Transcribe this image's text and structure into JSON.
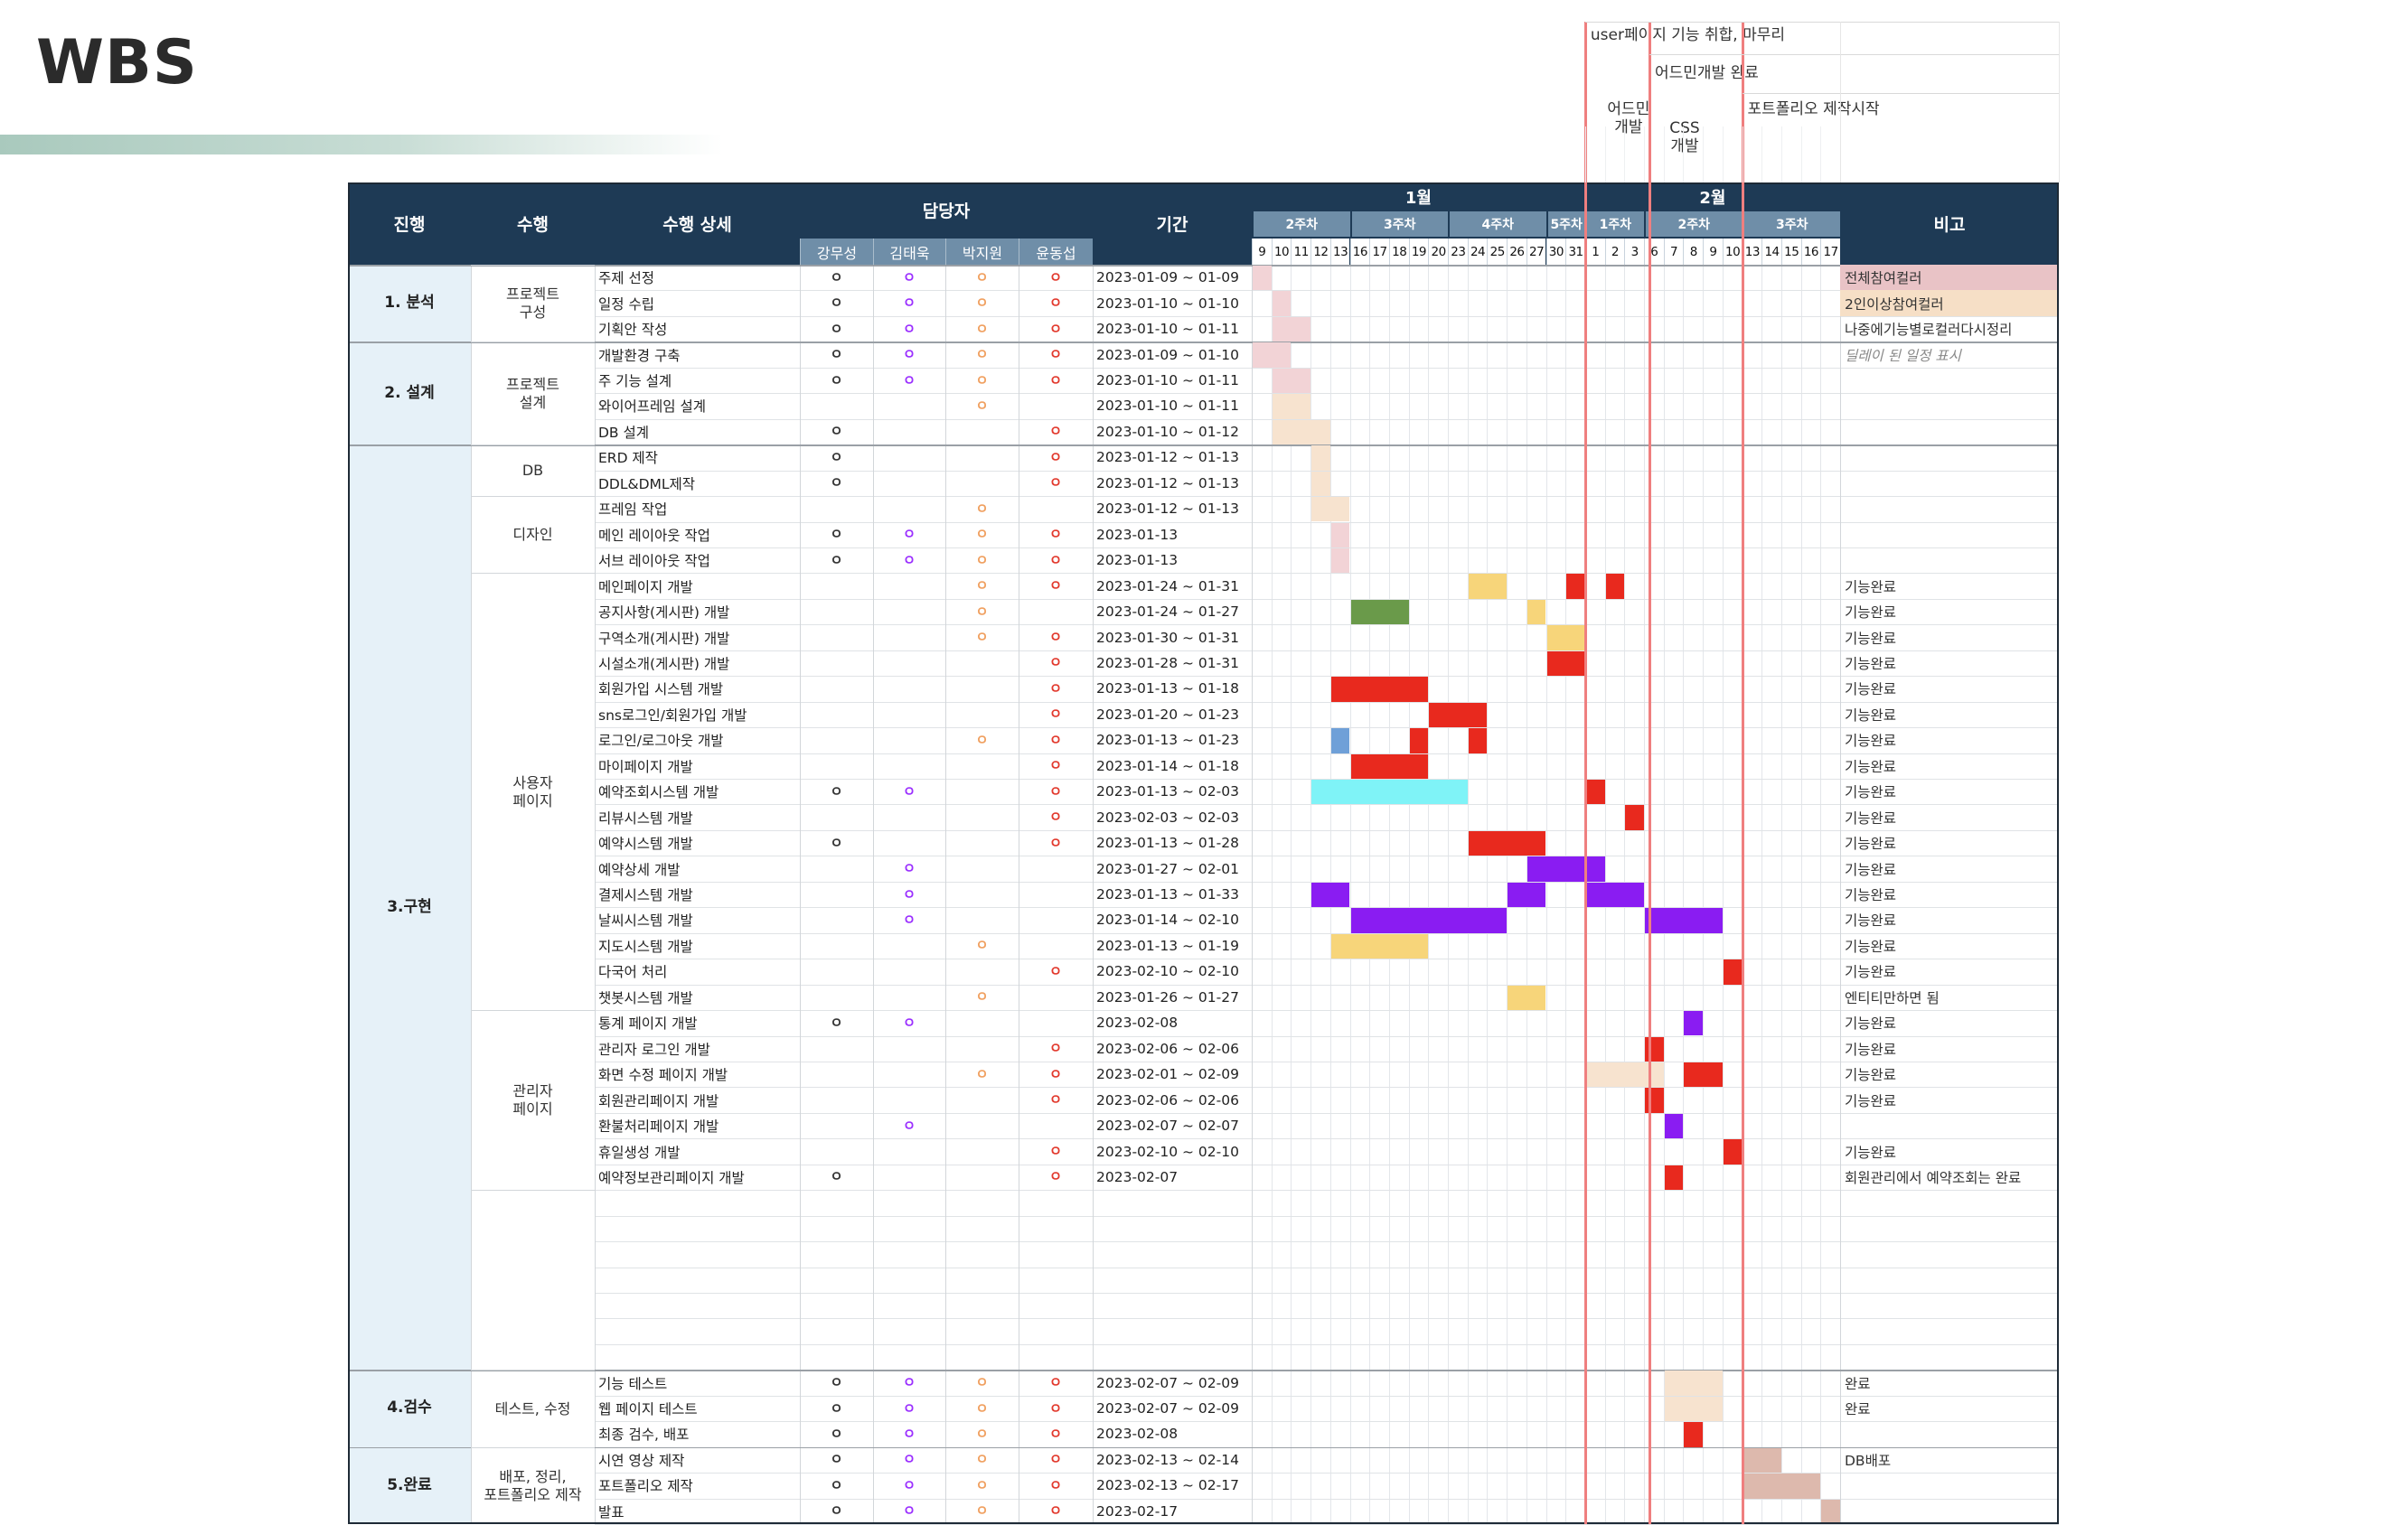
{
  "title": "WBS",
  "annotations": [
    {
      "id": "user-page",
      "text": "user페이지 기능 취합, 마무리"
    },
    {
      "id": "admin-done",
      "text": "어드민개발 완료"
    },
    {
      "id": "admin-dev",
      "text": "어드민\n개발"
    },
    {
      "id": "css-dev",
      "text": "CSS\n개발"
    },
    {
      "id": "portfolio-start",
      "text": "포트폴리오 제작시작"
    }
  ],
  "header": {
    "progress": "진행",
    "task": "수행",
    "detail": "수행 상세",
    "owner": "담당자",
    "owners": [
      "강무성",
      "김태욱",
      "박지원",
      "윤동섭"
    ],
    "period": "기간",
    "remarks": "비고"
  },
  "months": [
    "1월",
    "2월"
  ],
  "weeks": [
    "2주차",
    "3주차",
    "4주차",
    "5주차",
    "1주차",
    "2주차",
    "3주차"
  ],
  "days": [
    "9",
    "10",
    "11",
    "12",
    "13",
    "16",
    "17",
    "18",
    "19",
    "20",
    "23",
    "24",
    "25",
    "26",
    "27",
    "30",
    "31",
    "1",
    "2",
    "3",
    "6",
    "7",
    "8",
    "9",
    "10",
    "13",
    "14",
    "15",
    "16",
    "17"
  ],
  "phases": [
    {
      "label": "1. 분석",
      "row_start": 0,
      "row_count": 3
    },
    {
      "label": "2. 설계",
      "row_start": 3,
      "row_count": 4
    },
    {
      "label": "3.구현",
      "row_start": 7,
      "row_count": 36
    },
    {
      "label": "4.검수",
      "row_start": 43,
      "row_count": 3
    },
    {
      "label": "5.완료",
      "row_start": 46,
      "row_count": 3
    }
  ],
  "groups": [
    {
      "label": "프로젝트\n구성",
      "row_start": 0,
      "row_count": 3
    },
    {
      "label": "프로젝트\n설계",
      "row_start": 3,
      "row_count": 4
    },
    {
      "label": "DB",
      "row_start": 7,
      "row_count": 2
    },
    {
      "label": "디자인",
      "row_start": 9,
      "row_count": 3
    },
    {
      "label": "사용자\n페이지",
      "row_start": 12,
      "row_count": 17
    },
    {
      "label": "관리자\n페이지",
      "row_start": 29,
      "row_count": 7
    },
    {
      "label": "",
      "row_start": 36,
      "row_count": 7
    },
    {
      "label": "테스트, 수정",
      "row_start": 43,
      "row_count": 3
    },
    {
      "label": "배포, 정리,\n포트폴리오 제작",
      "row_start": 46,
      "row_count": 3
    }
  ],
  "mark_symbol": "ㅇ",
  "owner_colors": [
    "#333333",
    "#9b30ff",
    "#f0a060",
    "#e23a2e"
  ],
  "legend_colors": {
    "all": "#e9c3c6",
    "two_plus": "#f6dfc6",
    "delay": "#9aa0a6"
  },
  "rows": [
    {
      "detail": "주제 선정",
      "owners": [
        1,
        1,
        1,
        1
      ],
      "period": "2023-01-09 ~ 01-09",
      "note": "전체참여컬러",
      "note_bg": "#e9c3c6",
      "bars": [
        [
          0,
          0,
          "#f2d3d6"
        ]
      ]
    },
    {
      "detail": "일정 수립",
      "owners": [
        1,
        1,
        1,
        1
      ],
      "period": "2023-01-10 ~ 01-10",
      "note": "2인이상참여컬러",
      "note_bg": "#f6dfc6",
      "bars": [
        [
          1,
          1,
          "#f2d3d6"
        ]
      ]
    },
    {
      "detail": "기획안 작성",
      "owners": [
        1,
        1,
        1,
        1
      ],
      "period": "2023-01-10 ~ 01-11",
      "note": "나중에기능별로컬러다시정리",
      "bars": [
        [
          1,
          2,
          "#f2d3d6"
        ]
      ]
    },
    {
      "detail": "개발환경 구축",
      "owners": [
        1,
        1,
        1,
        1
      ],
      "period": "2023-01-09 ~ 01-10",
      "note": "딜레이 된 일정 표시",
      "note_style": "italic",
      "bars": [
        [
          0,
          1,
          "#f2d3d6"
        ]
      ]
    },
    {
      "detail": "주 기능 설계",
      "owners": [
        1,
        1,
        1,
        1
      ],
      "period": "2023-01-10 ~ 01-11",
      "note": "",
      "bars": [
        [
          1,
          2,
          "#f2d3d6"
        ]
      ]
    },
    {
      "detail": "와이어프레임 설계",
      "owners": [
        0,
        0,
        1,
        0
      ],
      "period": "2023-01-10 ~ 01-11",
      "note": "",
      "bars": [
        [
          1,
          2,
          "#f7e3cf"
        ]
      ]
    },
    {
      "detail": "DB 설계",
      "owners": [
        1,
        0,
        0,
        1
      ],
      "period": "2023-01-10 ~ 01-12",
      "note": "",
      "bars": [
        [
          1,
          3,
          "#f7e3cf"
        ]
      ]
    },
    {
      "detail": "ERD 제작",
      "owners": [
        1,
        0,
        0,
        1
      ],
      "period": "2023-01-12 ~ 01-13",
      "note": "",
      "bars": [
        [
          3,
          3,
          "#f7e3cf"
        ]
      ]
    },
    {
      "detail": "DDL&DML제작",
      "owners": [
        1,
        0,
        0,
        1
      ],
      "period": "2023-01-12 ~ 01-13",
      "note": "",
      "bars": [
        [
          3,
          3,
          "#f7e3cf"
        ]
      ]
    },
    {
      "detail": "프레임 작업",
      "owners": [
        0,
        0,
        1,
        0
      ],
      "period": "2023-01-12 ~ 01-13",
      "note": "",
      "bars": [
        [
          3,
          4,
          "#f7e3cf"
        ]
      ]
    },
    {
      "detail": "메인 레이아웃 작업",
      "owners": [
        1,
        1,
        1,
        1
      ],
      "period": "2023-01-13",
      "note": "",
      "bars": [
        [
          4,
          4,
          "#f2d3d6"
        ]
      ]
    },
    {
      "detail": "서브 레이아웃 작업",
      "owners": [
        1,
        1,
        1,
        1
      ],
      "period": "2023-01-13",
      "note": "",
      "bars": [
        [
          4,
          4,
          "#f2d3d6"
        ]
      ]
    },
    {
      "detail": "메인페이지 개발",
      "owners": [
        0,
        0,
        1,
        1
      ],
      "period": "2023-01-24 ~ 01-31",
      "note": "기능완료",
      "bars": [
        [
          11,
          12,
          "#f7d57a"
        ],
        [
          16,
          16,
          "#e8291e"
        ],
        [
          18,
          18,
          "#e8291e"
        ]
      ]
    },
    {
      "detail": "공지사항(게시판) 개발",
      "owners": [
        0,
        0,
        1,
        0
      ],
      "period": "2023-01-24 ~ 01-27",
      "note": "기능완료",
      "bars": [
        [
          5,
          7,
          "#6a9a4a"
        ],
        [
          14,
          14,
          "#f7d57a"
        ]
      ]
    },
    {
      "detail": "구역소개(게시판) 개발",
      "owners": [
        0,
        0,
        1,
        1
      ],
      "period": "2023-01-30 ~ 01-31",
      "note": "기능완료",
      "bars": [
        [
          15,
          16,
          "#f7d57a"
        ]
      ]
    },
    {
      "detail": "시설소개(게시판) 개발",
      "owners": [
        0,
        0,
        0,
        1
      ],
      "period": "2023-01-28 ~ 01-31",
      "note": "기능완료",
      "bars": [
        [
          15,
          16,
          "#e8291e"
        ]
      ]
    },
    {
      "detail": "회원가입 시스템 개발",
      "owners": [
        0,
        0,
        0,
        1
      ],
      "period": "2023-01-13 ~ 01-18",
      "note": "기능완료",
      "bars": [
        [
          4,
          8,
          "#e8291e"
        ]
      ]
    },
    {
      "detail": "sns로그인/회원가입 개발",
      "owners": [
        0,
        0,
        0,
        1
      ],
      "period": "2023-01-20 ~ 01-23",
      "note": "기능완료",
      "bars": [
        [
          9,
          11,
          "#e8291e"
        ]
      ]
    },
    {
      "detail": "로그인/로그아웃 개발",
      "owners": [
        0,
        0,
        1,
        1
      ],
      "period": "2023-01-13 ~ 01-23",
      "note": "기능완료",
      "bars": [
        [
          4,
          4,
          "#6fa0d8"
        ],
        [
          8,
          8,
          "#e8291e"
        ],
        [
          11,
          11,
          "#e8291e"
        ]
      ]
    },
    {
      "detail": "마이페이지 개발",
      "owners": [
        0,
        0,
        0,
        1
      ],
      "period": "2023-01-14 ~ 01-18",
      "note": "기능완료",
      "bars": [
        [
          5,
          8,
          "#e8291e"
        ]
      ]
    },
    {
      "detail": "예약조회시스템 개발",
      "owners": [
        1,
        1,
        0,
        1
      ],
      "period": "2023-01-13 ~ 02-03",
      "note": "기능완료",
      "bars": [
        [
          3,
          10,
          "#7ff3f7"
        ],
        [
          17,
          17,
          "#e8291e"
        ]
      ]
    },
    {
      "detail": "리뷰시스템 개발",
      "owners": [
        0,
        0,
        0,
        1
      ],
      "period": "2023-02-03 ~ 02-03",
      "note": "기능완료",
      "bars": [
        [
          19,
          19,
          "#e8291e"
        ]
      ]
    },
    {
      "detail": "예약시스템 개발",
      "owners": [
        1,
        0,
        0,
        1
      ],
      "period": "2023-01-13 ~ 01-28",
      "note": "기능완료",
      "bars": [
        [
          11,
          14,
          "#e8291e"
        ]
      ]
    },
    {
      "detail": "예약상세 개발",
      "owners": [
        0,
        1,
        0,
        0
      ],
      "period": "2023-01-27 ~ 02-01",
      "note": "기능완료",
      "bars": [
        [
          14,
          17,
          "#8a1cf2"
        ]
      ]
    },
    {
      "detail": "결제시스템 개발",
      "owners": [
        0,
        1,
        0,
        0
      ],
      "period": "2023-01-13 ~ 01-33",
      "note": "기능완료",
      "bars": [
        [
          3,
          4,
          "#8a1cf2"
        ],
        [
          13,
          14,
          "#8a1cf2"
        ],
        [
          17,
          19,
          "#8a1cf2"
        ]
      ]
    },
    {
      "detail": "날씨시스템 개발",
      "owners": [
        0,
        1,
        0,
        0
      ],
      "period": "2023-01-14 ~ 02-10",
      "note": "기능완료",
      "bars": [
        [
          5,
          12,
          "#8a1cf2"
        ],
        [
          20,
          23,
          "#8a1cf2"
        ]
      ]
    },
    {
      "detail": "지도시스템 개발",
      "owners": [
        0,
        0,
        1,
        0
      ],
      "period": "2023-01-13 ~ 01-19",
      "note": "기능완료",
      "bars": [
        [
          4,
          8,
          "#f7d57a"
        ]
      ]
    },
    {
      "detail": "다국어 처리",
      "owners": [
        0,
        0,
        0,
        1
      ],
      "period": "2023-02-10 ~ 02-10",
      "note": "기능완료",
      "bars": [
        [
          24,
          24,
          "#e8291e"
        ]
      ]
    },
    {
      "detail": "챗봇시스템 개발",
      "owners": [
        0,
        0,
        1,
        0
      ],
      "period": "2023-01-26 ~ 01-27",
      "note": "엔티티만하면 됨",
      "bars": [
        [
          13,
          14,
          "#f7d57a"
        ]
      ]
    },
    {
      "detail": "통계 페이지 개발",
      "owners": [
        1,
        1,
        0,
        0
      ],
      "period": "2023-02-08",
      "note": "기능완료",
      "bars": [
        [
          22,
          22,
          "#8a1cf2"
        ]
      ]
    },
    {
      "detail": "관리자 로그인 개발",
      "owners": [
        0,
        0,
        0,
        1
      ],
      "period": "2023-02-06 ~ 02-06",
      "note": "기능완료",
      "bars": [
        [
          20,
          20,
          "#e8291e"
        ]
      ]
    },
    {
      "detail": "화면 수정 페이지 개발",
      "owners": [
        0,
        0,
        1,
        1
      ],
      "period": "2023-02-01 ~ 02-09",
      "note": "기능완료",
      "bars": [
        [
          17,
          20,
          "#f7e3cf"
        ],
        [
          22,
          23,
          "#e8291e"
        ]
      ]
    },
    {
      "detail": "회원관리페이지 개발",
      "owners": [
        0,
        0,
        0,
        1
      ],
      "period": "2023-02-06 ~ 02-06",
      "note": "기능완료",
      "bars": [
        [
          20,
          20,
          "#e8291e"
        ]
      ]
    },
    {
      "detail": "환불처리페이지 개발",
      "owners": [
        0,
        1,
        0,
        0
      ],
      "period": "2023-02-07 ~ 02-07",
      "note": "",
      "bars": [
        [
          21,
          21,
          "#8a1cf2"
        ]
      ]
    },
    {
      "detail": "휴일생성 개발",
      "owners": [
        0,
        0,
        0,
        1
      ],
      "period": "2023-02-10 ~ 02-10",
      "note": "기능완료",
      "bars": [
        [
          24,
          24,
          "#e8291e"
        ]
      ]
    },
    {
      "detail": "예약정보관리페이지 개발",
      "owners": [
        1,
        0,
        0,
        1
      ],
      "period": "2023-02-07",
      "note": "회원관리에서 예약조회는 완료",
      "bars": [
        [
          21,
          21,
          "#e8291e"
        ]
      ]
    },
    {
      "detail": "",
      "owners": [
        0,
        0,
        0,
        0
      ],
      "period": "",
      "note": "",
      "bars": [],
      "hidden": true
    },
    {
      "detail": "",
      "owners": [
        0,
        0,
        0,
        0
      ],
      "period": "",
      "note": "",
      "bars": [],
      "hidden": true
    },
    {
      "detail": "",
      "owners": [
        0,
        0,
        0,
        0
      ],
      "period": "",
      "note": "",
      "bars": [],
      "hidden": true
    },
    {
      "detail": "",
      "owners": [
        0,
        0,
        0,
        0
      ],
      "period": "",
      "note": "",
      "bars": [],
      "hidden": true
    },
    {
      "detail": "",
      "owners": [
        0,
        0,
        0,
        0
      ],
      "period": "",
      "note": "",
      "bars": [],
      "hidden": true
    },
    {
      "detail": "",
      "owners": [
        0,
        0,
        0,
        0
      ],
      "period": "",
      "note": "",
      "bars": [],
      "hidden": true
    },
    {
      "detail": "",
      "owners": [
        0,
        0,
        0,
        0
      ],
      "period": "",
      "note": "",
      "bars": [],
      "hidden": true
    },
    {
      "detail": "기능 테스트",
      "owners": [
        1,
        1,
        1,
        1
      ],
      "period": "2023-02-07 ~ 02-09",
      "note": "완료",
      "bars": [
        [
          21,
          23,
          "#f7e3cf"
        ]
      ]
    },
    {
      "detail": "웹 페이지 테스트",
      "owners": [
        1,
        1,
        1,
        1
      ],
      "period": "2023-02-07 ~ 02-09",
      "note": "완료",
      "bars": [
        [
          21,
          23,
          "#f7e3cf"
        ]
      ]
    },
    {
      "detail": "최종 검수, 배포",
      "owners": [
        1,
        1,
        1,
        1
      ],
      "period": "2023-02-08",
      "note": "",
      "bars": [
        [
          22,
          22,
          "#e8291e"
        ]
      ]
    },
    {
      "detail": "시연 영상 제작",
      "owners": [
        1,
        1,
        1,
        1
      ],
      "period": "2023-02-13 ~ 02-14",
      "note": "DB배포",
      "bars": [
        [
          25,
          26,
          "#ddb9ad"
        ]
      ]
    },
    {
      "detail": "포트폴리오 제작",
      "owners": [
        1,
        1,
        1,
        1
      ],
      "period": "2023-02-13 ~ 02-17",
      "note": "",
      "bars": [
        [
          25,
          28,
          "#ddb9ad"
        ]
      ]
    },
    {
      "detail": "발표",
      "owners": [
        1,
        1,
        1,
        1
      ],
      "period": "2023-02-17",
      "note": "",
      "bars": [
        [
          29,
          29,
          "#ddb9ad"
        ]
      ]
    }
  ]
}
